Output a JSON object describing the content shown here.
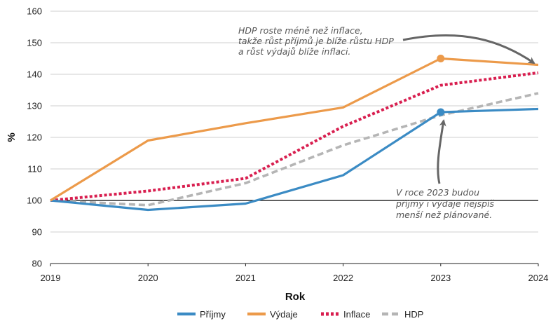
{
  "chart_data": {
    "type": "line",
    "x": [
      2019,
      2020,
      2021,
      2022,
      2023,
      2024
    ],
    "x_tick_labels": [
      "2019",
      "2020",
      "2021",
      "2022",
      "2023",
      "2024"
    ],
    "y_tick_labels": [
      "80",
      "90",
      "100",
      "110",
      "120",
      "130",
      "140",
      "150",
      "160"
    ],
    "xlabel": "Rok",
    "ylabel": "%",
    "ylim": [
      80,
      160
    ],
    "grid": "horizontal",
    "legend_position": "bottom",
    "series": [
      {
        "name": "Příjmy",
        "color": "#3b8bc4",
        "style": "solid",
        "values": [
          100,
          97,
          99,
          108,
          128,
          129
        ],
        "marker_year": 2023
      },
      {
        "name": "Výdaje",
        "color": "#ec9a4a",
        "style": "solid",
        "values": [
          100,
          119,
          124.5,
          129.5,
          145,
          143
        ],
        "marker_year": 2023
      },
      {
        "name": "Inflace",
        "color": "#d81e4f",
        "style": "dotted",
        "values": [
          100,
          103,
          107,
          123.5,
          136.5,
          140.5
        ]
      },
      {
        "name": "HDP",
        "color": "#b5b5b5",
        "style": "dashed",
        "values": [
          100,
          98.5,
          105.5,
          117.5,
          127,
          134
        ]
      }
    ],
    "annotations": [
      {
        "lines": [
          "HDP roste méně než inflace,",
          "takže růst příjmů je blíže růstu HDP",
          "a růst výdajů blíže inflaci."
        ]
      },
      {
        "lines": [
          "V roce 2023 budou",
          "příjmy i výdaje nejspíš",
          "menší než plánované."
        ]
      }
    ]
  }
}
